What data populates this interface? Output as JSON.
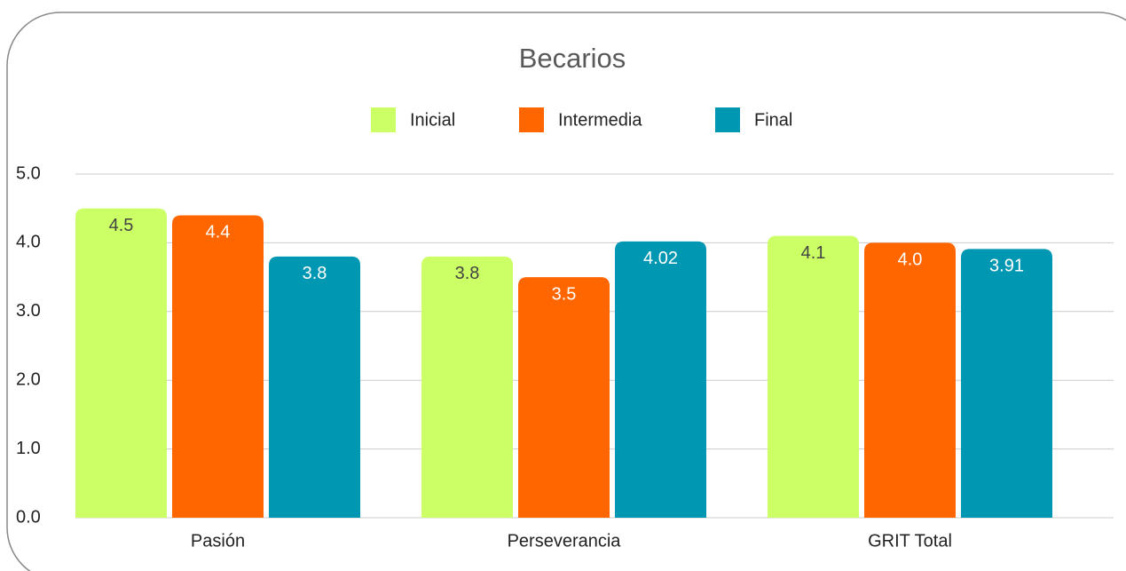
{
  "chart_data": {
    "type": "bar",
    "title": "Becarios",
    "categories": [
      "Pasión",
      "Perseverancia",
      "GRIT Total"
    ],
    "series": [
      {
        "name": "Inicial",
        "color": "#ccff66",
        "values": [
          4.5,
          3.8,
          4.1
        ],
        "value_labels": [
          "4.5",
          "3.8",
          "4.1"
        ]
      },
      {
        "name": "Intermedia",
        "color": "#ff6600",
        "values": [
          4.4,
          3.5,
          4.0
        ],
        "value_labels": [
          "4.4",
          "3.5",
          "4.0"
        ]
      },
      {
        "name": "Final",
        "color": "#0097b2",
        "values": [
          3.8,
          4.02,
          3.91
        ],
        "value_labels": [
          "3.8",
          "4.02",
          "3.91"
        ]
      }
    ],
    "ylim": [
      0,
      5
    ],
    "yticks": [
      {
        "value": 0,
        "label": "0.0"
      },
      {
        "value": 1,
        "label": "1.0"
      },
      {
        "value": 2,
        "label": "2.0"
      },
      {
        "value": 3,
        "label": "3.0"
      },
      {
        "value": 4,
        "label": "4.0"
      },
      {
        "value": 5,
        "label": "5.0"
      }
    ],
    "grid": true,
    "legend": "top"
  }
}
